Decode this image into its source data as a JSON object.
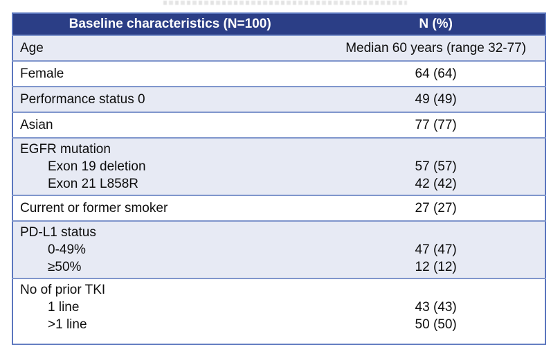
{
  "page": {
    "background": "#ffffff"
  },
  "table": {
    "header": {
      "col1": "Baseline characteristics (N=100)",
      "col2": "N (%)"
    },
    "rows": [
      {
        "labels": [
          "Age"
        ],
        "values": [
          "Median 60 years (range 32-77)"
        ]
      },
      {
        "labels": [
          "Female"
        ],
        "values": [
          "64 (64)"
        ]
      },
      {
        "labels": [
          "Performance status 0"
        ],
        "values": [
          "49 (49)"
        ]
      },
      {
        "labels": [
          "Asian"
        ],
        "values": [
          "77 (77)"
        ]
      },
      {
        "labels": [
          "EGFR mutation",
          "Exon 19 deletion",
          "Exon 21 L858R"
        ],
        "values": [
          "",
          "57 (57)",
          "42 (42)"
        ]
      },
      {
        "labels": [
          "Current or former smoker"
        ],
        "values": [
          "27 (27)"
        ]
      },
      {
        "labels": [
          "PD-L1 status",
          "0-49%",
          "≥50%"
        ],
        "values": [
          "",
          "47 (47)",
          "12 (12)"
        ]
      },
      {
        "labels": [
          "No of prior TKI",
          "1 line",
          ">1 line"
        ],
        "values": [
          "",
          "43 (43)",
          "50 (50)"
        ]
      }
    ],
    "colors": {
      "header_bg": "#2B3E86",
      "header_text": "#FFFFFF",
      "row_shaded_bg": "#E7EAF4",
      "row_plain_bg": "#FFFFFF",
      "separator": "#8096CC",
      "outer_border": "#5B76BE",
      "text": "#0E0E0E"
    }
  }
}
